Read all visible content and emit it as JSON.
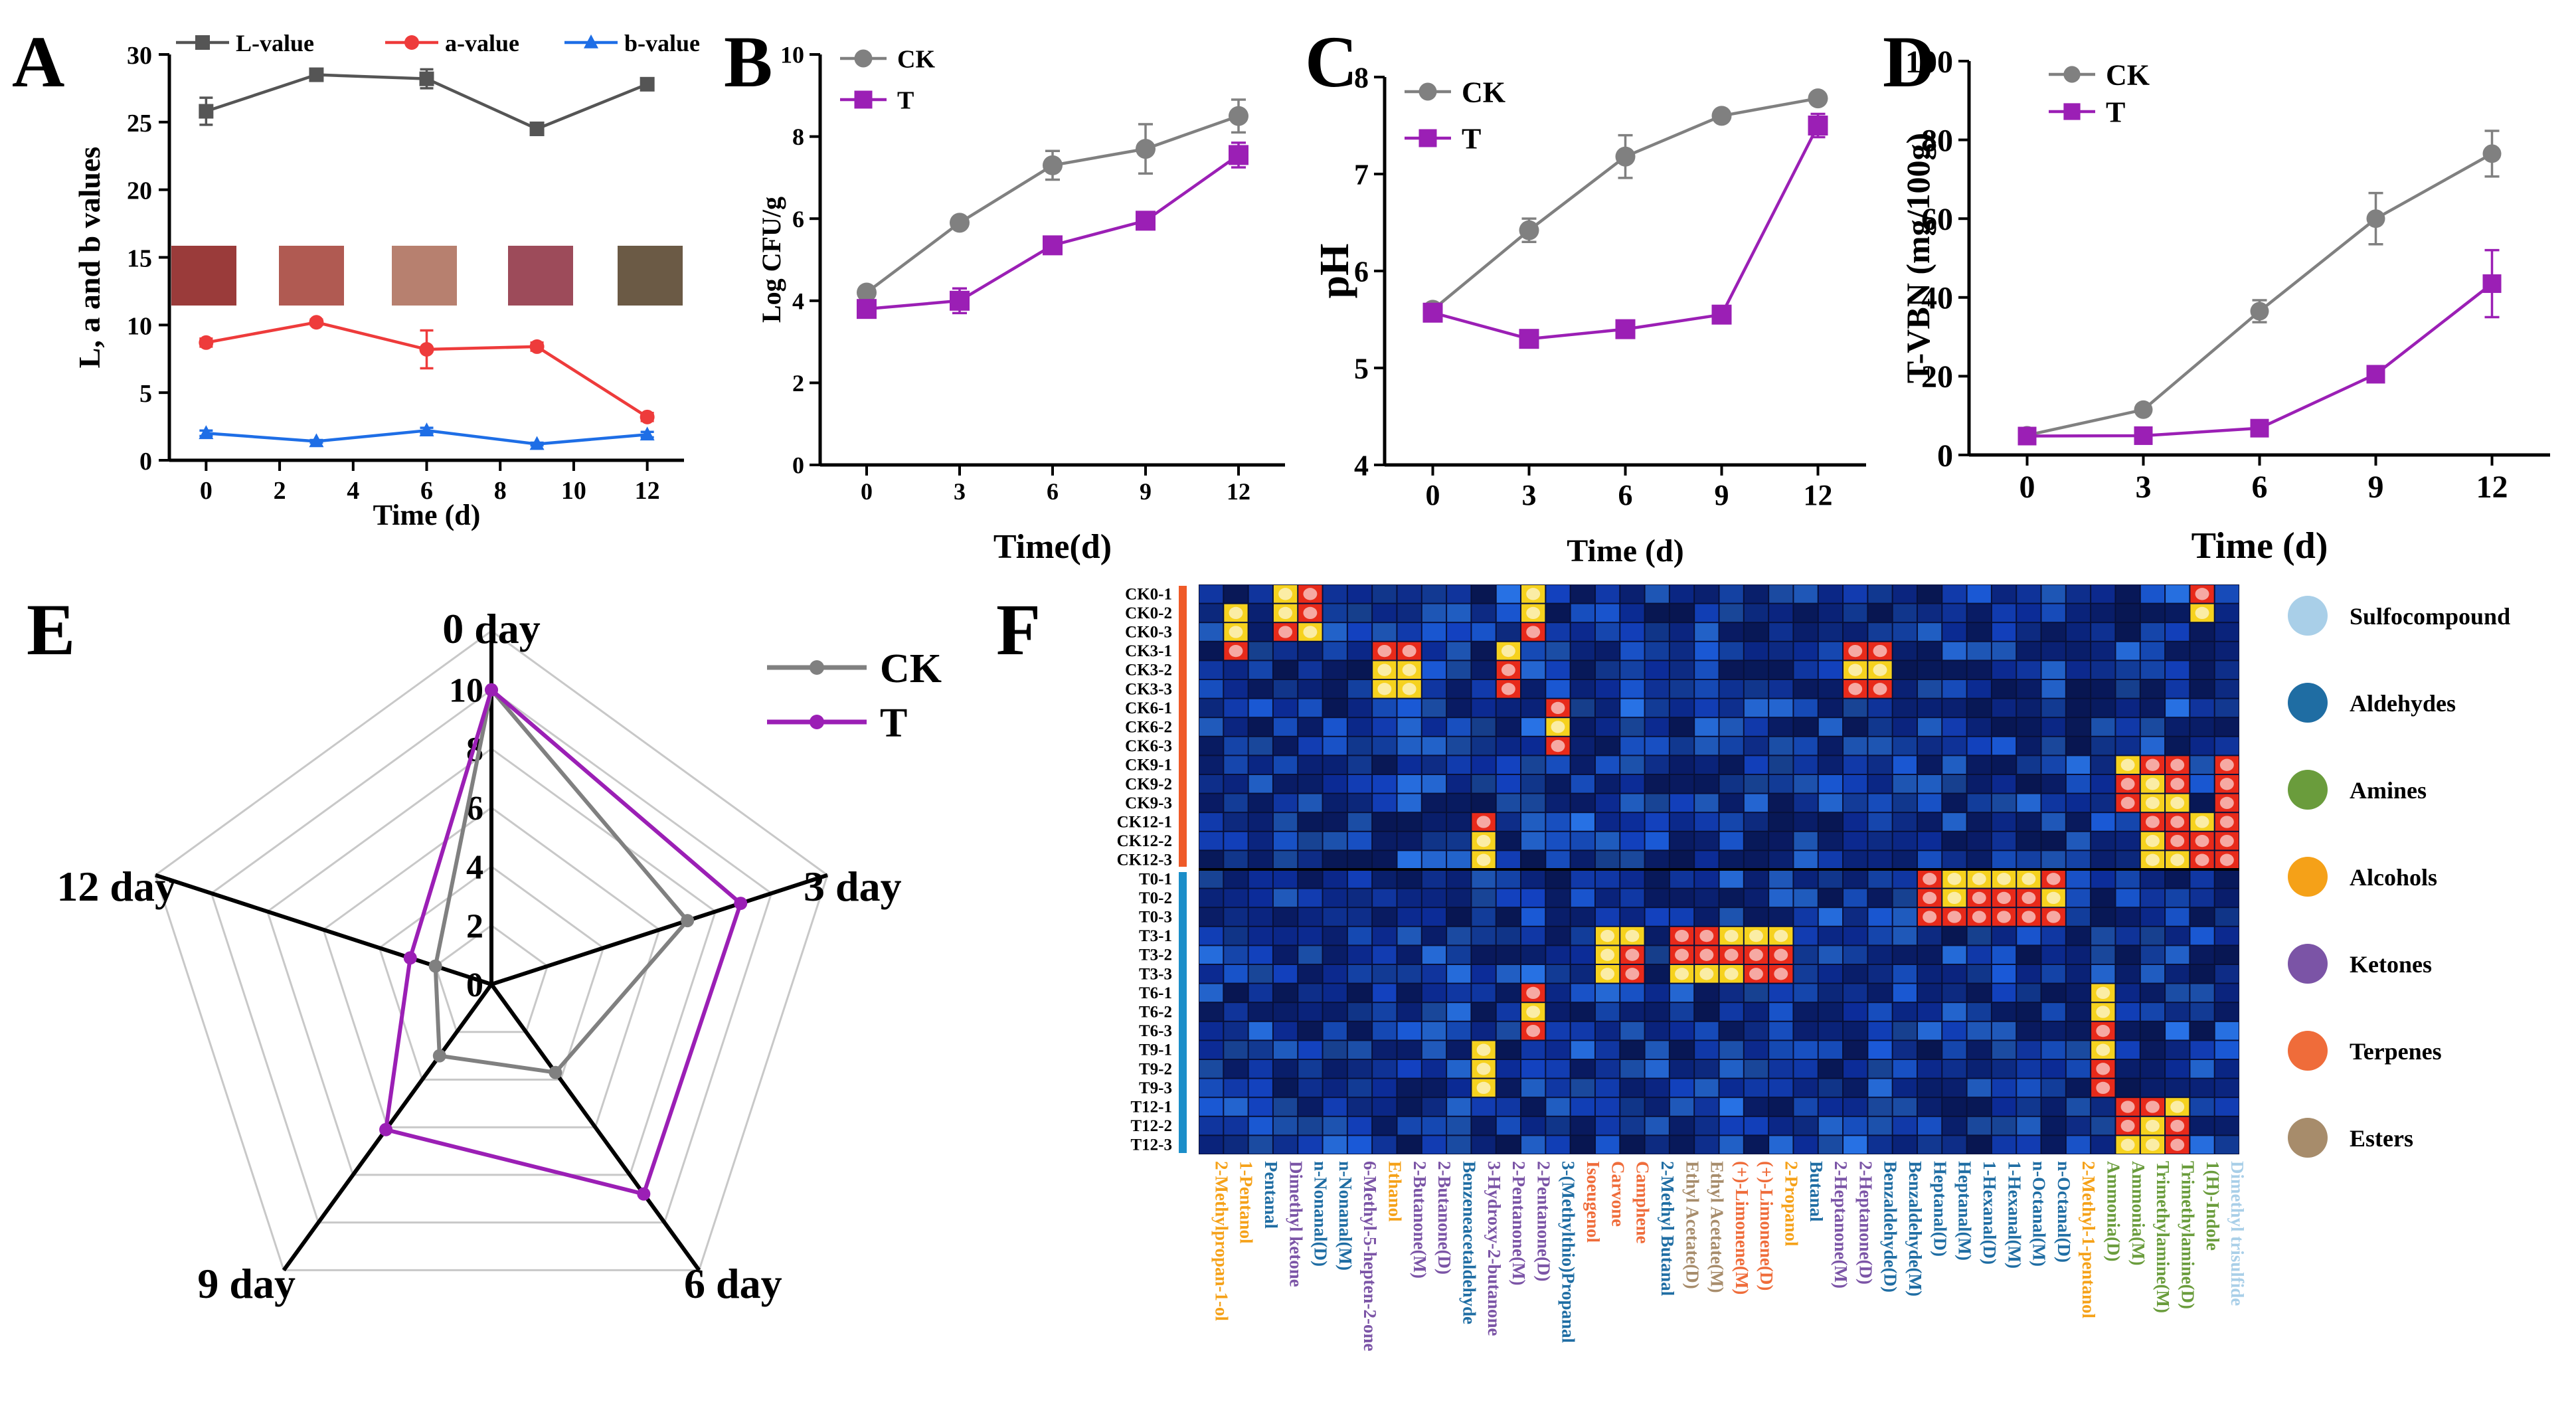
{
  "panels": {
    "A": "A",
    "B": "B",
    "C": "C",
    "D": "D",
    "E": "E",
    "F": "F"
  },
  "colors": {
    "ck": "#808080",
    "t": "#9b1fb5",
    "L": "#555555",
    "a": "#ee3b3b",
    "b": "#1e6ee6",
    "axis": "#000000",
    "radarGrid": "#c8c8c8",
    "orange": "#ef5a28",
    "blue": "#1b8ec9"
  },
  "chart_data": [
    {
      "id": "A",
      "type": "line",
      "xlabel": "Time (d)",
      "ylabel": "L, a and b values",
      "x": [
        0,
        3,
        6,
        9,
        12
      ],
      "xticks": [
        0,
        2,
        4,
        6,
        8,
        10,
        12
      ],
      "yticks": [
        0,
        5,
        10,
        15,
        20,
        25,
        30
      ],
      "ylim": [
        0,
        30
      ],
      "xlim": [
        -1,
        13
      ],
      "series": [
        {
          "name": "L-value",
          "values": [
            25.8,
            28.5,
            28.2,
            24.5,
            27.8
          ],
          "err": [
            1.0,
            0.4,
            0.7,
            0.2,
            0.2
          ],
          "marker": "square",
          "color": "#555555"
        },
        {
          "name": "a-value",
          "values": [
            8.7,
            10.2,
            8.2,
            8.4,
            3.2
          ],
          "err": [
            0.3,
            0.2,
            1.4,
            0.3,
            0.3
          ],
          "marker": "circle",
          "color": "#ee3b3b"
        },
        {
          "name": "b-value",
          "values": [
            2.0,
            1.4,
            2.2,
            1.2,
            1.9
          ],
          "err": [
            0.2,
            0.1,
            0.2,
            0.1,
            0.2
          ],
          "marker": "triangle",
          "color": "#1e6ee6"
        }
      ]
    },
    {
      "id": "B",
      "type": "line",
      "xlabel": "Time(d)",
      "ylabel": "Log CFU/g",
      "x": [
        0,
        3,
        6,
        9,
        12
      ],
      "xticks": [
        0,
        3,
        6,
        9,
        12
      ],
      "yticks": [
        0,
        2,
        4,
        6,
        8,
        10
      ],
      "ylim": [
        0,
        10
      ],
      "xlim": [
        -1.5,
        13.5
      ],
      "series": [
        {
          "name": "CK",
          "values": [
            4.2,
            5.9,
            7.3,
            7.7,
            8.5
          ],
          "err": [
            0.1,
            0.1,
            0.35,
            0.6,
            0.4
          ],
          "marker": "circle",
          "color": "#808080"
        },
        {
          "name": "T",
          "values": [
            3.8,
            4.0,
            5.35,
            5.95,
            7.55
          ],
          "err": [
            0.1,
            0.3,
            0.1,
            0.1,
            0.3
          ],
          "marker": "square",
          "color": "#9b1fb5"
        }
      ]
    },
    {
      "id": "C",
      "type": "line",
      "xlabel": "Time (d)",
      "ylabel": "pH",
      "x": [
        0,
        3,
        6,
        9,
        12
      ],
      "xticks": [
        0,
        3,
        6,
        9,
        12
      ],
      "yticks": [
        4,
        5,
        6,
        7,
        8
      ],
      "ylim": [
        4,
        8
      ],
      "xlim": [
        -1.5,
        13.5
      ],
      "series": [
        {
          "name": "CK",
          "values": [
            5.6,
            6.42,
            7.18,
            7.6,
            7.78
          ],
          "err": [
            0.03,
            0.12,
            0.22,
            0.03,
            0.03
          ],
          "marker": "circle",
          "color": "#808080"
        },
        {
          "name": "T",
          "values": [
            5.57,
            5.3,
            5.4,
            5.55,
            7.5
          ],
          "err": [
            0.03,
            0.03,
            0.03,
            0.03,
            0.12
          ],
          "marker": "square",
          "color": "#9b1fb5"
        }
      ]
    },
    {
      "id": "D",
      "type": "line",
      "xlabel": "Time (d)",
      "ylabel": "T-VBN (mg/100g)",
      "x": [
        0,
        3,
        6,
        9,
        12
      ],
      "xticks": [
        0,
        3,
        6,
        9,
        12
      ],
      "yticks": [
        0,
        20,
        40,
        60,
        80,
        100
      ],
      "ylim": [
        0,
        100
      ],
      "xlim": [
        -1.5,
        13.5
      ],
      "series": [
        {
          "name": "CK",
          "values": [
            5,
            11.5,
            36.5,
            60,
            76.5
          ],
          "err": [
            0.6,
            0.8,
            2.8,
            6.5,
            5.8
          ],
          "marker": "circle",
          "color": "#808080"
        },
        {
          "name": "T",
          "values": [
            4.8,
            4.9,
            6.8,
            20.5,
            43.5
          ],
          "err": [
            0.4,
            0.4,
            0.6,
            1.2,
            8.5
          ],
          "marker": "square",
          "color": "#9b1fb5"
        }
      ]
    },
    {
      "id": "E",
      "type": "radar",
      "categories": [
        "0 day",
        "3 day",
        "6 day",
        "9 day",
        "12 day"
      ],
      "rticks": [
        0,
        2,
        4,
        6,
        8,
        10
      ],
      "rmax": 10,
      "gridRings": [
        2,
        4,
        6,
        8,
        10,
        12
      ],
      "rOuter": 12,
      "series": [
        {
          "name": "CK",
          "values": [
            10,
            7,
            3.7,
            3,
            2
          ],
          "color": "#808080"
        },
        {
          "name": "T",
          "values": [
            10,
            8.9,
            8.8,
            6.1,
            2.9
          ],
          "color": "#9b1fb5"
        }
      ]
    },
    {
      "id": "F",
      "type": "heatmap",
      "rows": [
        "CK0-1",
        "CK0-2",
        "CK0-3",
        "CK3-1",
        "CK3-2",
        "CK3-3",
        "CK6-1",
        "CK6-2",
        "CK6-3",
        "CK9-1",
        "CK9-2",
        "CK9-3",
        "CK12-1",
        "CK12-2",
        "CK12-3",
        "T0-1",
        "T0-2",
        "T0-3",
        "T3-1",
        "T3-2",
        "T3-3",
        "T6-1",
        "T6-2",
        "T6-3",
        "T9-1",
        "T9-2",
        "T9-3",
        "T12-1",
        "T12-2",
        "T12-3"
      ],
      "columns": [
        {
          "label": "2-Methylpropan-1-ol",
          "cls": "Alcohols"
        },
        {
          "label": "1-Pentanol",
          "cls": "Alcohols"
        },
        {
          "label": "Pentanal",
          "cls": "Aldehydes"
        },
        {
          "label": "Dimethyl ketone",
          "cls": "Ketones"
        },
        {
          "label": "n-Nonanal(D)",
          "cls": "Aldehydes"
        },
        {
          "label": "n-Nonanal(M)",
          "cls": "Aldehydes"
        },
        {
          "label": "6-Methyl-5-hepten-2-one",
          "cls": "Ketones"
        },
        {
          "label": "Ethanol",
          "cls": "Alcohols"
        },
        {
          "label": "2-Butanone(M)",
          "cls": "Ketones"
        },
        {
          "label": "2-Butanone(D)",
          "cls": "Ketones"
        },
        {
          "label": "Benzeneacetaldehyde",
          "cls": "Aldehydes"
        },
        {
          "label": "3-Hydroxy-2-butanone",
          "cls": "Ketones"
        },
        {
          "label": "2-Pentanone(M)",
          "cls": "Ketones"
        },
        {
          "label": "2-Pentanone(D)",
          "cls": "Ketones"
        },
        {
          "label": "3-(Methylthio)Propanal",
          "cls": "Aldehydes"
        },
        {
          "label": "Isoeugenol",
          "cls": "Terpenes"
        },
        {
          "label": "Carvone",
          "cls": "Terpenes"
        },
        {
          "label": "Camphene",
          "cls": "Terpenes"
        },
        {
          "label": "2-Methyl Butanal",
          "cls": "Aldehydes"
        },
        {
          "label": "Ethyl Acetate(D)",
          "cls": "Esters"
        },
        {
          "label": "Ethyl Acetate(M)",
          "cls": "Esters"
        },
        {
          "label": "(+)-Limonene(M)",
          "cls": "Terpenes"
        },
        {
          "label": "(+)-Limonene(D)",
          "cls": "Terpenes"
        },
        {
          "label": "2-Propanol",
          "cls": "Alcohols"
        },
        {
          "label": "Butanal",
          "cls": "Aldehydes"
        },
        {
          "label": "2-Heptanone(M)",
          "cls": "Ketones"
        },
        {
          "label": "2-Heptanone(D)",
          "cls": "Ketones"
        },
        {
          "label": "Benzaldehyde(D)",
          "cls": "Aldehydes"
        },
        {
          "label": "Benzaldehyde(M)",
          "cls": "Aldehydes"
        },
        {
          "label": "Heptanal(D)",
          "cls": "Aldehydes"
        },
        {
          "label": "Heptanal(M)",
          "cls": "Aldehydes"
        },
        {
          "label": "1-Hexanal(D)",
          "cls": "Aldehydes"
        },
        {
          "label": "1-Hexanal(M)",
          "cls": "Aldehydes"
        },
        {
          "label": "n-Octanal(M)",
          "cls": "Aldehydes"
        },
        {
          "label": "n-Octanal(D)",
          "cls": "Aldehydes"
        },
        {
          "label": "2-Methyl-1-pentanol",
          "cls": "Alcohols"
        },
        {
          "label": "Ammonia(D)",
          "cls": "Amines"
        },
        {
          "label": "Ammonia(M)",
          "cls": "Amines"
        },
        {
          "label": "Trimethylamine(M)",
          "cls": "Amines"
        },
        {
          "label": "Trimethylamine(D)",
          "cls": "Amines"
        },
        {
          "label": "1(H)-Indole",
          "cls": "Amines"
        },
        {
          "label": "Dimethyl trisulfide",
          "cls": "Sulfocompound"
        }
      ],
      "hot": [
        [
          1,
          1
        ],
        [
          2,
          1
        ],
        [
          3,
          1
        ],
        [
          0,
          3
        ],
        [
          1,
          3
        ],
        [
          2,
          3
        ],
        [
          18,
          16
        ],
        [
          19,
          16
        ],
        [
          20,
          16
        ],
        [
          18,
          17
        ],
        [
          19,
          17
        ],
        [
          20,
          17
        ],
        [
          18,
          19
        ],
        [
          19,
          19
        ],
        [
          20,
          19
        ],
        [
          18,
          20
        ],
        [
          19,
          20
        ],
        [
          20,
          20
        ],
        [
          18,
          21
        ],
        [
          19,
          21
        ],
        [
          20,
          21
        ],
        [
          18,
          22
        ],
        [
          19,
          22
        ],
        [
          20,
          22
        ],
        [
          18,
          23
        ],
        [
          19,
          23
        ],
        [
          20,
          23
        ],
        [
          3,
          26
        ],
        [
          4,
          26
        ],
        [
          5,
          26
        ],
        [
          3,
          27
        ],
        [
          4,
          27
        ],
        [
          5,
          27
        ],
        [
          15,
          29
        ],
        [
          16,
          29
        ],
        [
          17,
          29
        ],
        [
          15,
          30
        ],
        [
          16,
          30
        ],
        [
          17,
          30
        ],
        [
          15,
          31
        ],
        [
          16,
          31
        ],
        [
          17,
          31
        ],
        [
          15,
          32
        ],
        [
          16,
          32
        ],
        [
          17,
          32
        ],
        [
          15,
          33
        ],
        [
          16,
          33
        ],
        [
          17,
          33
        ],
        [
          15,
          34
        ],
        [
          16,
          34
        ],
        [
          17,
          34
        ],
        [
          3,
          12
        ],
        [
          4,
          12
        ],
        [
          5,
          12
        ],
        [
          0,
          13
        ],
        [
          1,
          13
        ],
        [
          2,
          13
        ],
        [
          6,
          14
        ],
        [
          7,
          14
        ],
        [
          8,
          14
        ],
        [
          9,
          37
        ],
        [
          10,
          37
        ],
        [
          11,
          37
        ],
        [
          9,
          38
        ],
        [
          10,
          38
        ],
        [
          11,
          38
        ],
        [
          12,
          38
        ],
        [
          13,
          38
        ],
        [
          14,
          38
        ],
        [
          9,
          39
        ],
        [
          10,
          39
        ],
        [
          11,
          39
        ],
        [
          12,
          39
        ],
        [
          13,
          39
        ],
        [
          14,
          39
        ],
        [
          12,
          40
        ],
        [
          13,
          40
        ],
        [
          14,
          40
        ],
        [
          9,
          41
        ],
        [
          10,
          41
        ],
        [
          11,
          41
        ],
        [
          12,
          41
        ],
        [
          13,
          41
        ],
        [
          14,
          41
        ],
        [
          0,
          40
        ],
        [
          1,
          40
        ],
        [
          21,
          36
        ],
        [
          22,
          36
        ],
        [
          23,
          36
        ],
        [
          24,
          36
        ],
        [
          25,
          36
        ],
        [
          26,
          36
        ],
        [
          27,
          37
        ],
        [
          28,
          37
        ],
        [
          29,
          37
        ],
        [
          27,
          38
        ],
        [
          28,
          38
        ],
        [
          29,
          38
        ],
        [
          27,
          39
        ],
        [
          28,
          39
        ],
        [
          29,
          39
        ],
        [
          24,
          11
        ],
        [
          25,
          11
        ],
        [
          26,
          11
        ],
        [
          21,
          13
        ],
        [
          22,
          13
        ],
        [
          23,
          13
        ],
        [
          12,
          11
        ],
        [
          13,
          11
        ],
        [
          14,
          11
        ],
        [
          3,
          8
        ],
        [
          4,
          8
        ],
        [
          5,
          8
        ],
        [
          0,
          4
        ],
        [
          1,
          4
        ],
        [
          2,
          4
        ],
        [
          3,
          7
        ],
        [
          4,
          7
        ],
        [
          5,
          7
        ]
      ],
      "legend": [
        {
          "label": "Sulfocompound",
          "color": "#a9cfe8"
        },
        {
          "label": "Aldehydes",
          "color": "#1f6da3"
        },
        {
          "label": "Amines",
          "color": "#6a9c3c"
        },
        {
          "label": "Alcohols",
          "color": "#f5a118"
        },
        {
          "label": "Ketones",
          "color": "#7b54a6"
        },
        {
          "label": "Terpenes",
          "color": "#ef6c3a"
        },
        {
          "label": "Esters",
          "color": "#a78c6b"
        }
      ]
    }
  ]
}
